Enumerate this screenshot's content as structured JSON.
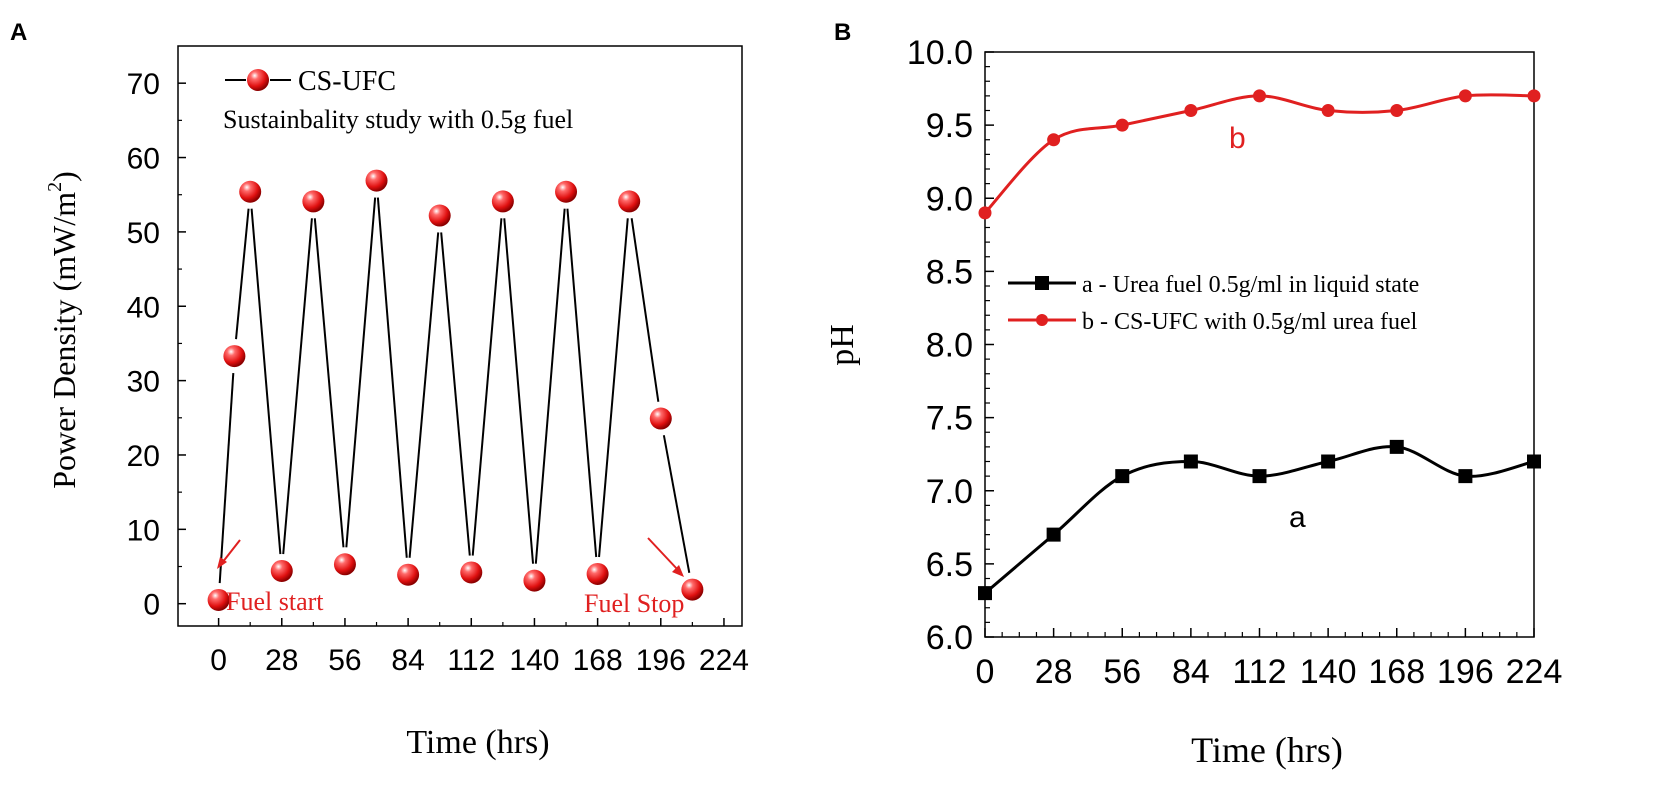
{
  "chart_data": [
    {
      "panel": "A",
      "type": "line",
      "title": "",
      "xlabel": "Time (hrs)",
      "ylabel_main": "Power Density (mW/m",
      "ylabel_sup": "2",
      "ylabel_close": ")",
      "xlim": [
        -18,
        232
      ],
      "ylim": [
        -3,
        75
      ],
      "xticks": [
        0,
        28,
        56,
        84,
        112,
        140,
        168,
        196,
        224
      ],
      "yticks": [
        0,
        10,
        20,
        30,
        40,
        50,
        60,
        70
      ],
      "legend": "CS-UFC",
      "subtitle": "Sustainbality study with 0.5g fuel",
      "series": [
        {
          "name": "CS-UFC",
          "color": "#e02020",
          "x": [
            0,
            7,
            14,
            28,
            42,
            56,
            70,
            84,
            98,
            112,
            126,
            140,
            154,
            168,
            182,
            196,
            210
          ],
          "y": [
            0.5,
            33.3,
            55.4,
            4.4,
            54.1,
            5.3,
            56.9,
            3.9,
            52.2,
            4.2,
            54.1,
            3.1,
            55.4,
            4.0,
            54.1,
            24.9,
            1.9
          ]
        }
      ],
      "annotations": [
        {
          "text": "Fuel start"
        },
        {
          "text": "Fuel Stop"
        }
      ]
    },
    {
      "panel": "B",
      "type": "line",
      "title": "",
      "xlabel": "Time (hrs)",
      "ylabel": "pH",
      "xlim": [
        0,
        224
      ],
      "ylim": [
        6.0,
        10.0
      ],
      "xticks": [
        0,
        28,
        56,
        84,
        112,
        140,
        168,
        196,
        224
      ],
      "yticks": [
        "6.0",
        "6.5",
        "7.0",
        "7.5",
        "8.0",
        "8.5",
        "9.0",
        "9.5",
        "10.0"
      ],
      "series": [
        {
          "name": "a - Urea fuel 0.5g/ml in liquid state",
          "label": "a",
          "color": "#000000",
          "marker": "square",
          "x": [
            0,
            28,
            56,
            84,
            112,
            140,
            168,
            196,
            224
          ],
          "y": [
            6.3,
            6.7,
            7.1,
            7.2,
            7.1,
            7.2,
            7.3,
            7.1,
            7.2
          ]
        },
        {
          "name": "b - CS-UFC with 0.5g/ml urea fuel",
          "label": "b",
          "color": "#e02020",
          "marker": "circle",
          "x": [
            0,
            28,
            56,
            84,
            112,
            140,
            168,
            196,
            224
          ],
          "y": [
            8.9,
            9.4,
            9.5,
            9.6,
            9.7,
            9.6,
            9.6,
            9.7,
            9.7
          ]
        }
      ]
    }
  ],
  "panels": {
    "a_label": "A",
    "b_label": "B"
  }
}
